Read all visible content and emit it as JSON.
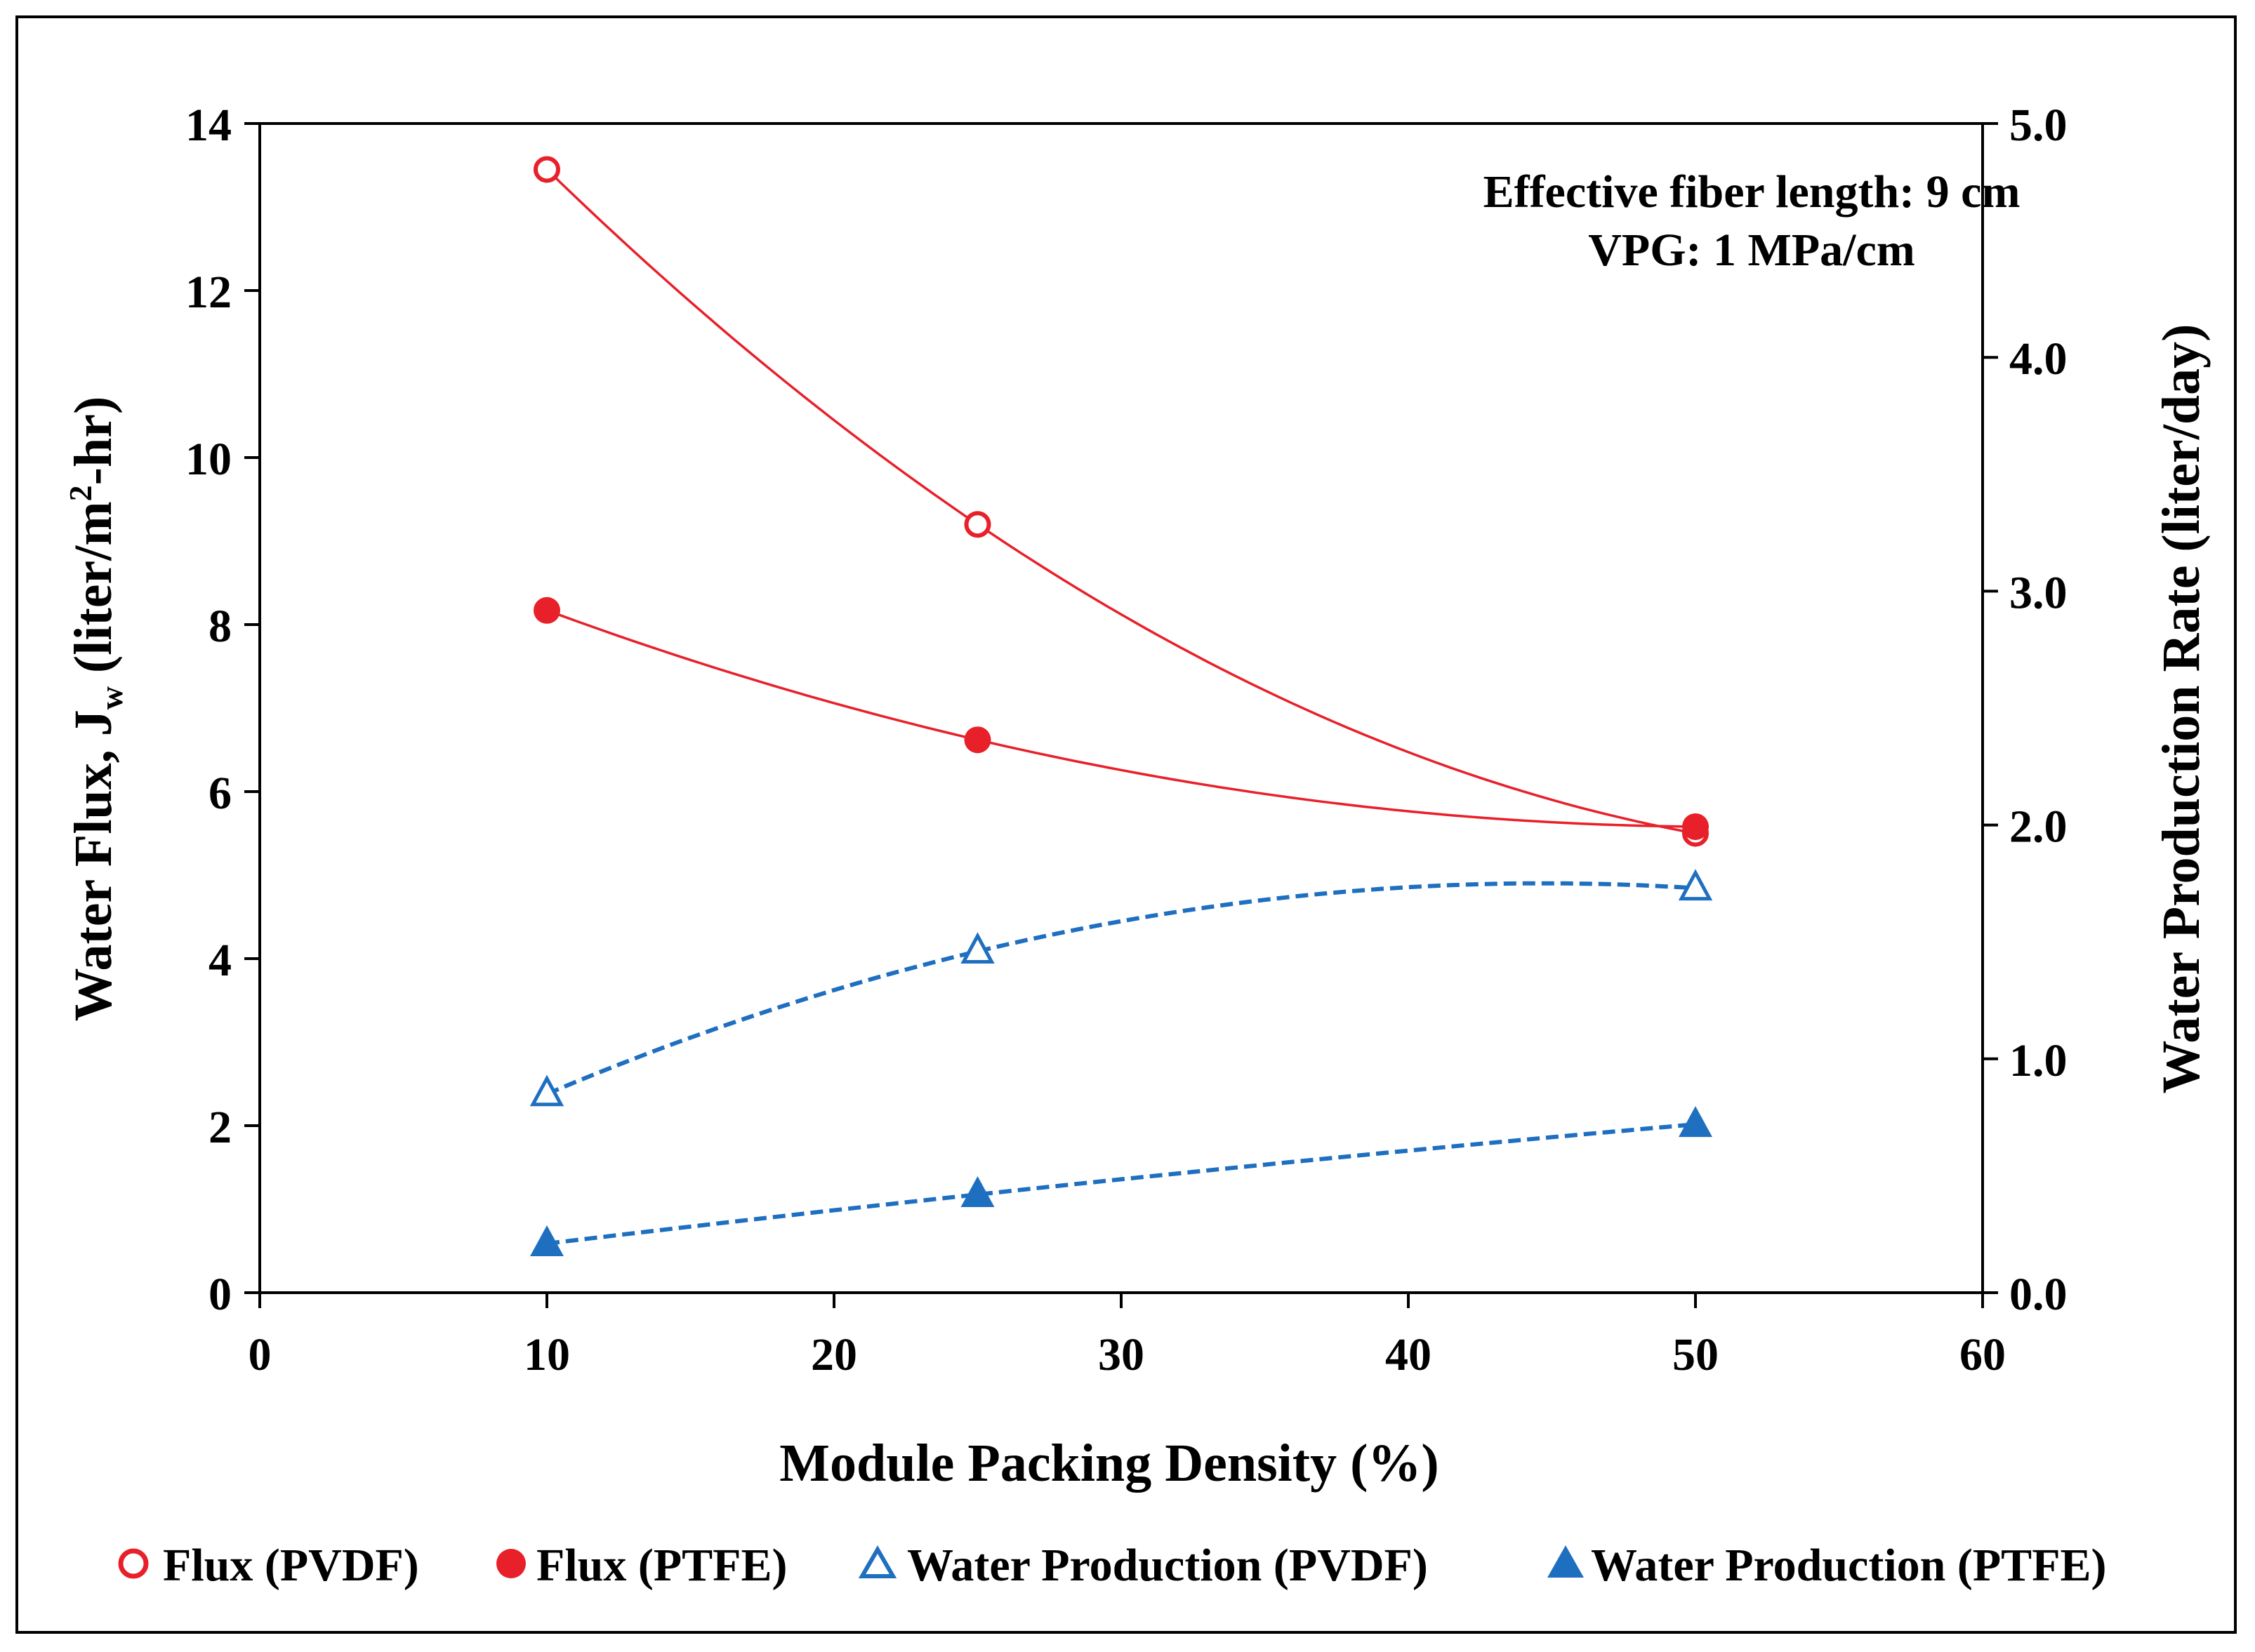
{
  "chart_data": {
    "type": "line",
    "xlabel": "Module Packing Density (%)",
    "ylabel_left": {
      "main": "Water Flux, J",
      "sub": "w",
      "units_pre": " (liter/m",
      "sup": "2",
      "units_post": "-hr)"
    },
    "ylabel_right": "Water Production Rate (liter/day)",
    "annotation": {
      "line1": "Effective fiber length: 9 cm",
      "line2": "VPG: 1 MPa/cm"
    },
    "xlim": [
      0,
      60
    ],
    "ylim_left": [
      0,
      14
    ],
    "ylim_right": [
      0,
      5
    ],
    "x_ticks": [
      "0",
      "10",
      "20",
      "30",
      "40",
      "50",
      "60"
    ],
    "y_left_ticks": [
      "0",
      "2",
      "4",
      "6",
      "8",
      "10",
      "12",
      "14"
    ],
    "y_right_ticks": [
      "0.0",
      "1.0",
      "2.0",
      "3.0",
      "4.0",
      "5.0"
    ],
    "series": [
      {
        "name": "Flux (PVDF)",
        "axis": "left",
        "marker": "circle-open",
        "line": "solid",
        "color": "#e8202a",
        "x": [
          10,
          25,
          50
        ],
        "values": [
          13.45,
          9.2,
          5.5
        ]
      },
      {
        "name": "Flux (PTFE)",
        "axis": "left",
        "marker": "circle-filled",
        "line": "solid",
        "color": "#e8202a",
        "x": [
          10,
          25,
          50
        ],
        "values": [
          8.17,
          6.62,
          5.58
        ]
      },
      {
        "name": "Water Production (PVDF)",
        "axis": "right",
        "marker": "triangle-open",
        "line": "dashed",
        "color": "#1f6fc0",
        "x": [
          10,
          25,
          50
        ],
        "values": [
          0.85,
          1.46,
          1.73
        ]
      },
      {
        "name": "Water Production (PTFE)",
        "axis": "right",
        "marker": "triangle-filled",
        "line": "dashed",
        "color": "#1f6fc0",
        "x": [
          10,
          25,
          50
        ],
        "values": [
          0.21,
          0.42,
          0.72
        ]
      }
    ]
  }
}
